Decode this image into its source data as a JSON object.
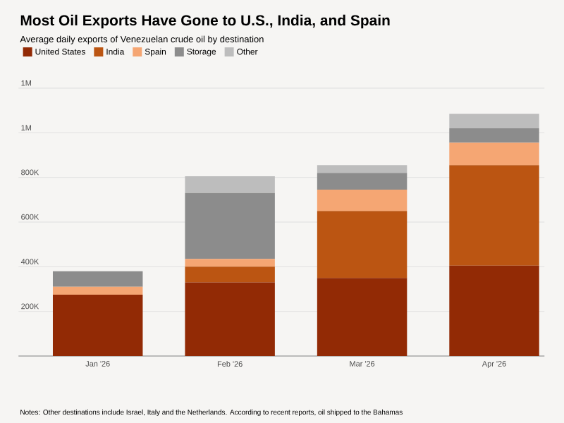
{
  "chart_data": {
    "type": "bar",
    "title": "Most Oil Exports Have Gone to U.S., India, and Spain",
    "subtitle": "Average daily exports of Venezuelan crude oil by destination",
    "categories": [
      "Jan '26",
      "Feb '26",
      "Mar '26",
      "Apr '26"
    ],
    "stacked": true,
    "series": [
      {
        "name": "United States",
        "color": "#922a05",
        "values": [
          275000,
          330000,
          350000,
          405000
        ]
      },
      {
        "name": "India",
        "color": "#bb5512",
        "values": [
          0,
          70000,
          300000,
          450000
        ]
      },
      {
        "name": "Spain",
        "color": "#f5a673",
        "values": [
          35000,
          35000,
          95000,
          100000
        ]
      },
      {
        "name": "Storage",
        "color": "#8c8c8c",
        "values": [
          70000,
          295000,
          75000,
          65000
        ]
      },
      {
        "name": "Other",
        "color": "#bdbdbd",
        "values": [
          0,
          75000,
          35000,
          65000
        ]
      }
    ],
    "ylim": [
      0,
      1200000
    ],
    "yticks": [
      {
        "value": 0,
        "label": null
      },
      {
        "value": 200000,
        "label": "200K"
      },
      {
        "value": 400000,
        "label": "400K"
      },
      {
        "value": 600000,
        "label": "600K"
      },
      {
        "value": 800000,
        "label": "800K"
      },
      {
        "value": 1000000,
        "label": "1M"
      },
      {
        "value": 1200000,
        "label": "1M"
      }
    ],
    "grid": "y",
    "legend": "top left",
    "annotations": [
      "Notes: Other destinations include Israel, Italy and the Netherlands. According to recent reports, oil shipped to the Bahamas"
    ]
  }
}
